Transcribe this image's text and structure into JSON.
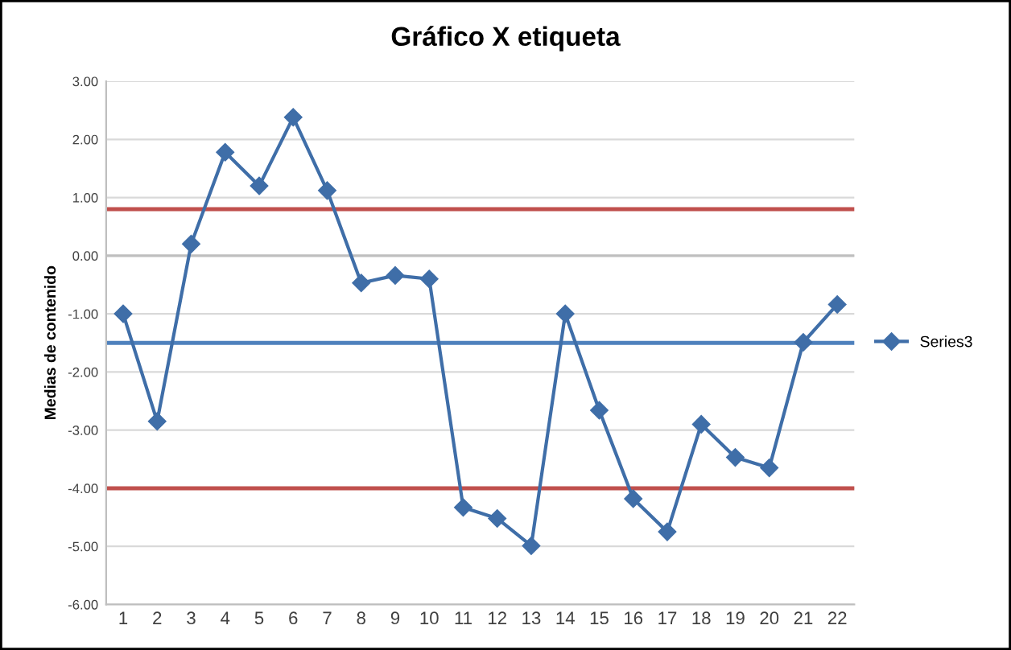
{
  "chart_data": {
    "type": "line",
    "title": "Gráfico X etiqueta",
    "ylabel": "Medias de contenido",
    "categories": [
      "1",
      "2",
      "3",
      "4",
      "5",
      "6",
      "7",
      "8",
      "9",
      "10",
      "11",
      "12",
      "13",
      "14",
      "15",
      "16",
      "17",
      "18",
      "19",
      "20",
      "21",
      "22"
    ],
    "series": [
      {
        "name": "Series3",
        "color": "#3f6ea8",
        "values": [
          -1.0,
          -2.85,
          0.2,
          1.78,
          1.2,
          2.38,
          1.12,
          -0.47,
          -0.34,
          -0.4,
          -4.33,
          -4.52,
          -4.99,
          -1.0,
          -2.66,
          -4.18,
          -4.75,
          -2.9,
          -3.47,
          -3.65,
          -1.49,
          -0.84
        ]
      }
    ],
    "ylim": [
      -6,
      3
    ],
    "yticks": [
      {
        "value": 3,
        "label": "3.00"
      },
      {
        "value": 2,
        "label": "2.00"
      },
      {
        "value": 1,
        "label": "1.00"
      },
      {
        "value": 0,
        "label": "0.00"
      },
      {
        "value": -1,
        "label": "-1.00"
      },
      {
        "value": -2,
        "label": "-2.00"
      },
      {
        "value": -3,
        "label": "-3.00"
      },
      {
        "value": -4,
        "label": "-4.00"
      },
      {
        "value": -5,
        "label": "-5.00"
      },
      {
        "value": -6,
        "label": "-6.00"
      }
    ],
    "ref_lines": [
      {
        "axis": "y",
        "value": 0.8,
        "color": "#c0504d"
      },
      {
        "axis": "y",
        "value": -1.5,
        "color": "#4f81bd"
      },
      {
        "axis": "y",
        "value": -4.0,
        "color": "#c0504d"
      }
    ],
    "grid": "y",
    "legend": "right",
    "marker": "diamond",
    "line_style": "solid"
  }
}
